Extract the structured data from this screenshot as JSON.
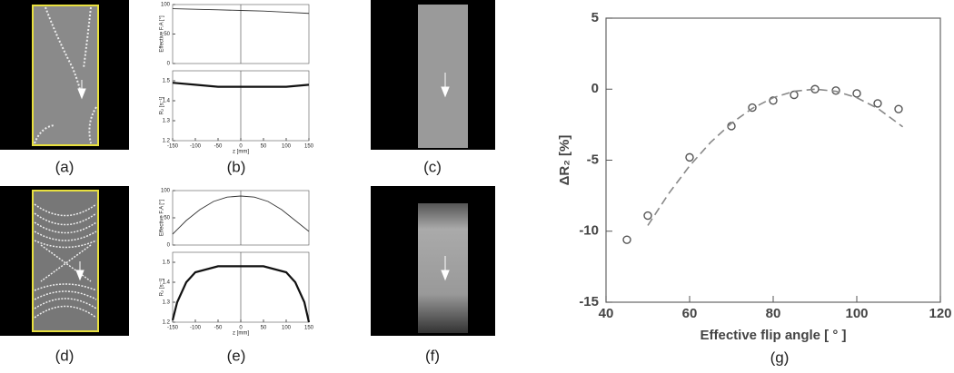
{
  "captions": [
    "(a)",
    "(b)",
    "(c)",
    "(d)",
    "(e)",
    "(f)",
    "(g)"
  ],
  "chart_data": [
    {
      "type": "line",
      "ylabel": "Effective F.A [°]",
      "x": [
        -150,
        -100,
        -50,
        0,
        50,
        100,
        150
      ],
      "values": [
        93,
        92,
        91,
        90,
        89,
        87,
        85
      ],
      "color": "#333",
      "xlim": [
        -150,
        150
      ],
      "ylim": [
        0,
        100
      ],
      "yticks": [
        0,
        50,
        100
      ]
    },
    {
      "type": "line",
      "ylabel": "R₂ [s⁻¹]",
      "xlabel": "z [mm]",
      "x": [
        -150,
        -100,
        -50,
        0,
        50,
        100,
        150
      ],
      "values": [
        1.49,
        1.48,
        1.47,
        1.47,
        1.47,
        1.47,
        1.48
      ],
      "color": "#111",
      "xlim": [
        -150,
        150
      ],
      "xticks": [
        -150,
        -100,
        -50,
        0,
        50,
        100,
        150
      ],
      "ylim": [
        1.2,
        1.55
      ],
      "yticks": [
        1.2,
        1.3,
        1.4,
        1.5
      ]
    },
    {
      "type": "line",
      "ylabel": "Effective F.A [°]",
      "x": [
        -150,
        -120,
        -90,
        -60,
        -30,
        0,
        30,
        60,
        90,
        120,
        150
      ],
      "values": [
        20,
        45,
        65,
        80,
        88,
        90,
        88,
        80,
        65,
        45,
        25
      ],
      "color": "#333",
      "xlim": [
        -150,
        150
      ],
      "ylim": [
        0,
        100
      ],
      "yticks": [
        0,
        50,
        100
      ]
    },
    {
      "type": "line",
      "ylabel": "R₂ [s⁻¹]",
      "xlabel": "z [mm]",
      "x": [
        -150,
        -140,
        -120,
        -100,
        -50,
        0,
        50,
        100,
        120,
        140,
        150
      ],
      "values": [
        1.21,
        1.3,
        1.4,
        1.45,
        1.48,
        1.48,
        1.48,
        1.45,
        1.4,
        1.3,
        1.2
      ],
      "color": "#111",
      "xlim": [
        -150,
        150
      ],
      "xticks": [
        -150,
        -100,
        -50,
        0,
        50,
        100,
        150
      ],
      "ylim": [
        1.2,
        1.55
      ],
      "yticks": [
        1.2,
        1.3,
        1.4,
        1.5
      ]
    },
    {
      "type": "scatter",
      "xlabel": "Effective flip angle [ ° ]",
      "ylabel": "ΔR₂ [%]",
      "series": [
        {
          "x": [
            45,
            50,
            60,
            70,
            75,
            80,
            85,
            90,
            95,
            100,
            105,
            110
          ],
          "values": [
            -10.6,
            -8.9,
            -4.8,
            -2.6,
            -1.3,
            -0.8,
            -0.4,
            0,
            -0.1,
            -0.3,
            -1.0,
            -1.4
          ],
          "color": "#555",
          "marker": "circle"
        },
        {
          "x": [
            50,
            55,
            60,
            65,
            70,
            75,
            80,
            85,
            90,
            95,
            100,
            105,
            111
          ],
          "values": [
            -9.6,
            -7.35,
            -5.4,
            -3.75,
            -2.4,
            -1.35,
            -0.6,
            -0.15,
            0,
            -0.15,
            -0.6,
            -1.35,
            -2.65
          ],
          "color": "#888",
          "style": "dashed"
        }
      ],
      "xlim": [
        40,
        120
      ],
      "xticks": [
        40,
        60,
        80,
        100,
        120
      ],
      "ylim": [
        -15,
        5
      ],
      "yticks": [
        -15,
        -10,
        -5,
        0,
        5
      ]
    }
  ]
}
